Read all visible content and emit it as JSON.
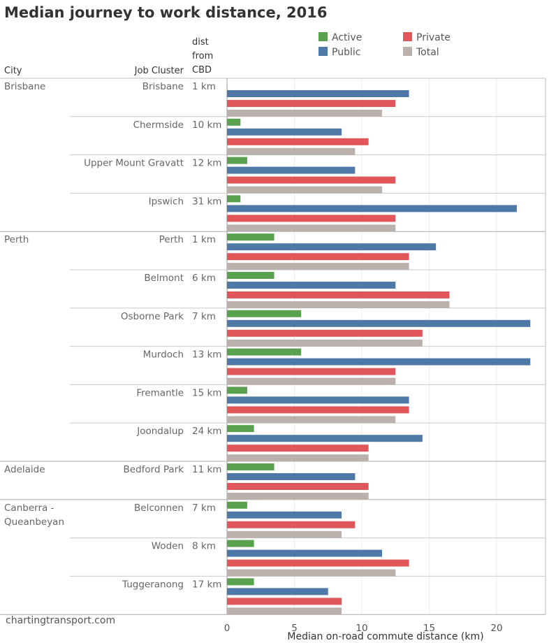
{
  "title": "Median journey to work distance, 2016",
  "headers": {
    "city": "City",
    "job_cluster": "Job Cluster",
    "dist": [
      "dist",
      "from",
      "CBD"
    ]
  },
  "source": "chartingtransport.com",
  "colors": {
    "Active": "#59a14f",
    "Public": "#4e79a7",
    "Private": "#e15759",
    "Total": "#bab0ac"
  },
  "chart_data": {
    "type": "bar",
    "orientation": "horizontal",
    "title": "Median journey to work distance, 2016",
    "xlabel": "Median on-road commute distance (km)",
    "xlim": [
      0,
      23.5
    ],
    "xticks": [
      0,
      5,
      10,
      15,
      20
    ],
    "series_names": [
      "Active",
      "Public",
      "Private",
      "Total"
    ],
    "legend": [
      "Active",
      "Private",
      "Public",
      "Total"
    ],
    "legend_position": "top-right",
    "grid": "vertical",
    "groups": [
      {
        "city": [
          "Brisbane"
        ],
        "rows": [
          {
            "cluster": "Brisbane",
            "dist": "1 km",
            "values": {
              "Active": null,
              "Public": 13.5,
              "Private": 12.5,
              "Total": 11.5
            }
          },
          {
            "cluster": "Chermside",
            "dist": "10 km",
            "values": {
              "Active": 1.0,
              "Public": 8.5,
              "Private": 10.5,
              "Total": 9.5
            }
          },
          {
            "cluster": "Upper Mount Gravatt",
            "dist": "12 km",
            "values": {
              "Active": 1.5,
              "Public": 9.5,
              "Private": 12.5,
              "Total": 11.5
            }
          },
          {
            "cluster": "Ipswich",
            "dist": "31 km",
            "values": {
              "Active": 1.0,
              "Public": 21.5,
              "Private": 12.5,
              "Total": 12.5
            }
          }
        ]
      },
      {
        "city": [
          "Perth"
        ],
        "rows": [
          {
            "cluster": "Perth",
            "dist": "1 km",
            "values": {
              "Active": 3.5,
              "Public": 15.5,
              "Private": 13.5,
              "Total": 13.5
            }
          },
          {
            "cluster": "Belmont",
            "dist": "6 km",
            "values": {
              "Active": 3.5,
              "Public": 12.5,
              "Private": 16.5,
              "Total": 16.5
            }
          },
          {
            "cluster": "Osborne Park",
            "dist": "7 km",
            "values": {
              "Active": 5.5,
              "Public": 22.5,
              "Private": 14.5,
              "Total": 14.5
            }
          },
          {
            "cluster": "Murdoch",
            "dist": "13 km",
            "values": {
              "Active": 5.5,
              "Public": 22.5,
              "Private": 12.5,
              "Total": 12.5
            }
          },
          {
            "cluster": "Fremantle",
            "dist": "15 km",
            "values": {
              "Active": 1.5,
              "Public": 13.5,
              "Private": 13.5,
              "Total": 12.5
            }
          },
          {
            "cluster": "Joondalup",
            "dist": "24 km",
            "values": {
              "Active": 2.0,
              "Public": 14.5,
              "Private": 10.5,
              "Total": 10.5
            }
          }
        ]
      },
      {
        "city": [
          "Adelaide"
        ],
        "rows": [
          {
            "cluster": "Bedford Park",
            "dist": "11 km",
            "values": {
              "Active": 3.5,
              "Public": 9.5,
              "Private": 10.5,
              "Total": 10.5
            }
          }
        ]
      },
      {
        "city": [
          "Canberra -",
          "Queanbeyan"
        ],
        "rows": [
          {
            "cluster": "Belconnen",
            "dist": "7 km",
            "values": {
              "Active": 1.5,
              "Public": 8.5,
              "Private": 9.5,
              "Total": 8.5
            }
          },
          {
            "cluster": "Woden",
            "dist": "8 km",
            "values": {
              "Active": 2.0,
              "Public": 11.5,
              "Private": 13.5,
              "Total": 12.5
            }
          },
          {
            "cluster": "Tuggeranong",
            "dist": "17 km",
            "values": {
              "Active": 2.0,
              "Public": 7.5,
              "Private": 8.5,
              "Total": 8.5
            }
          }
        ]
      }
    ]
  }
}
